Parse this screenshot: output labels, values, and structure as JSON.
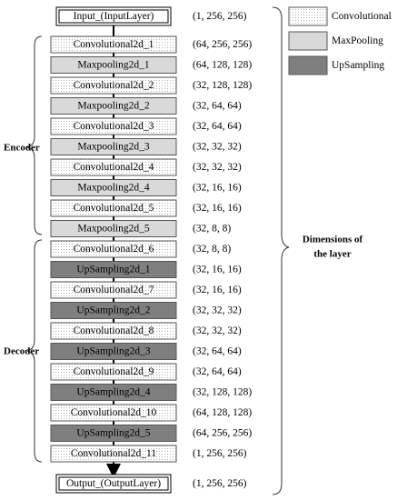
{
  "input": {
    "label": "Input_(InputLayer)",
    "dims": "(1, 256, 256)"
  },
  "layers": [
    {
      "label": "Convolutional2d_1",
      "dims": "(64, 256, 256)",
      "color": "#ffffff",
      "dotted": true
    },
    {
      "label": "Maxpooling2d_1",
      "dims": "(64, 128, 128)",
      "color": "#d9d9d9",
      "dotted": false
    },
    {
      "label": "Convolutional2d_2",
      "dims": "(32, 128, 128)",
      "color": "#ffffff",
      "dotted": true
    },
    {
      "label": "Maxpooling2d_2",
      "dims": "(32, 64, 64)",
      "color": "#d9d9d9",
      "dotted": false
    },
    {
      "label": "Convolutional2d_3",
      "dims": "(32, 64, 64)",
      "color": "#ffffff",
      "dotted": true
    },
    {
      "label": "Maxpooling2d_3",
      "dims": "(32, 32, 32)",
      "color": "#d9d9d9",
      "dotted": false
    },
    {
      "label": "Convolutional2d_4",
      "dims": "(32, 32, 32)",
      "color": "#ffffff",
      "dotted": true
    },
    {
      "label": "Maxpooling2d_4",
      "dims": "(32, 16, 16)",
      "color": "#d9d9d9",
      "dotted": false
    },
    {
      "label": "Convolutional2d_5",
      "dims": "(32, 16, 16)",
      "color": "#ffffff",
      "dotted": true
    },
    {
      "label": "Maxpooling2d_5",
      "dims": "(32, 8, 8)",
      "color": "#d9d9d9",
      "dotted": false
    },
    {
      "label": "Convolutional2d_6",
      "dims": "(32, 8, 8)",
      "color": "#ffffff",
      "dotted": true
    },
    {
      "label": "UpSampling2d_1",
      "dims": "(32, 16, 16)",
      "color": "#7f7f7f",
      "dotted": false
    },
    {
      "label": "Convolutional2d_7",
      "dims": "(32, 16, 16)",
      "color": "#ffffff",
      "dotted": true
    },
    {
      "label": "UpSampling2d_2",
      "dims": "(32, 32, 32)",
      "color": "#7f7f7f",
      "dotted": false
    },
    {
      "label": "Convolutional2d_8",
      "dims": "(32, 32, 32)",
      "color": "#ffffff",
      "dotted": true
    },
    {
      "label": "UpSampling2d_3",
      "dims": "(32, 64, 64)",
      "color": "#7f7f7f",
      "dotted": false
    },
    {
      "label": "Convolutional2d_9",
      "dims": "(32, 64, 64)",
      "color": "#ffffff",
      "dotted": true
    },
    {
      "label": "UpSampling2d_4",
      "dims": "(32, 128, 128)",
      "color": "#7f7f7f",
      "dotted": false
    },
    {
      "label": "Convolutional2d_10",
      "dims": "(64, 128, 128)",
      "color": "#ffffff",
      "dotted": true
    },
    {
      "label": "UpSampling2d_5",
      "dims": "(64, 256, 256)",
      "color": "#7f7f7f",
      "dotted": false
    },
    {
      "label": "Convolutional2d_11",
      "dims": "(1, 256, 256)",
      "color": "#ffffff",
      "dotted": true
    }
  ],
  "output": {
    "label": "Output_(OutputLayer)",
    "dims": "(1, 256, 256)"
  },
  "groups": {
    "encoder": "Encoder",
    "decoder": "Decoder"
  },
  "dimensions_note": [
    "Dimensions  of",
    "the layer"
  ],
  "legend": [
    {
      "label": "Convolutional",
      "color": "#ffffff",
      "dotted": true
    },
    {
      "label": "MaxPooling",
      "color": "#d9d9d9",
      "dotted": false
    },
    {
      "label": "UpSampling",
      "color": "#7f7f7f",
      "dotted": false
    }
  ]
}
